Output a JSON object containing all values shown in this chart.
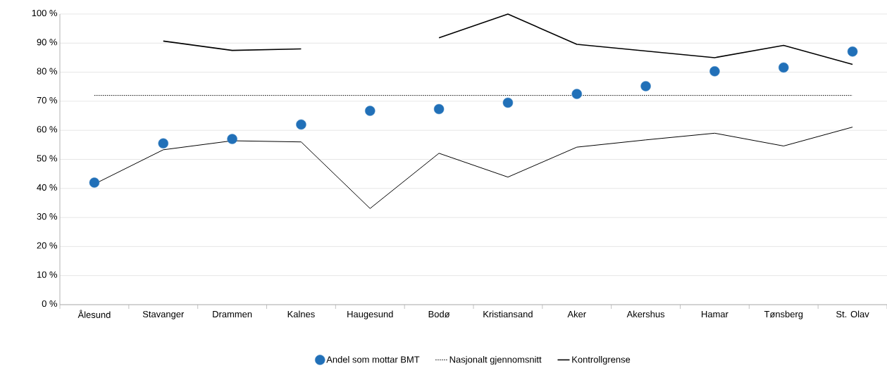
{
  "chart_data": {
    "type": "scatter",
    "categories": [
      "Ålesund",
      "Stavanger",
      "Drammen",
      "Kalnes",
      "Haugesund",
      "Bodø",
      "Kristiansand",
      "Aker",
      "Akershus",
      "Hamar",
      "Tønsberg",
      "St. Olav"
    ],
    "series": [
      {
        "name": "Andel som mottar BMT",
        "marker": "circle",
        "color": "#2170b8",
        "values": [
          42,
          55.5,
          57,
          62,
          66.7,
          67.3,
          69.5,
          72.5,
          75.2,
          80.3,
          81.6,
          87.1
        ]
      },
      {
        "name": "Nasjonalt gjennomsnitt",
        "type": "line",
        "line_style": "dotted",
        "color": "#000000",
        "values": [
          72,
          72,
          72,
          72,
          72,
          72,
          72,
          72,
          72,
          72,
          72,
          72
        ]
      },
      {
        "name": "Kontrollgrense",
        "type": "line",
        "line_style": "solid",
        "color": "#000000",
        "values": [
          null,
          90.7,
          87.5,
          88,
          null,
          91.8,
          100,
          89.6,
          87.3,
          85,
          89.2,
          82.7
        ]
      },
      {
        "type": "line",
        "line_style": "solid",
        "color": "#000000",
        "values": [
          41.5,
          53.3,
          56.4,
          56,
          33.1,
          52.1,
          43.9,
          54.2,
          56.7,
          59,
          54.6,
          61.1
        ]
      }
    ],
    "ylim": [
      0,
      100
    ],
    "yticks": [
      {
        "value": 0,
        "label": "0 %"
      },
      {
        "value": 10,
        "label": "10 %"
      },
      {
        "value": 20,
        "label": "20 %"
      },
      {
        "value": 30,
        "label": "30 %"
      },
      {
        "value": 40,
        "label": "40 %"
      },
      {
        "value": 50,
        "label": "50 %"
      },
      {
        "value": 60,
        "label": "60 %"
      },
      {
        "value": 70,
        "label": "70 %"
      },
      {
        "value": 80,
        "label": "80 %"
      },
      {
        "value": 90,
        "label": "90 %"
      },
      {
        "value": 100,
        "label": "100 %"
      }
    ],
    "grid": "y",
    "legend": "bottom"
  }
}
